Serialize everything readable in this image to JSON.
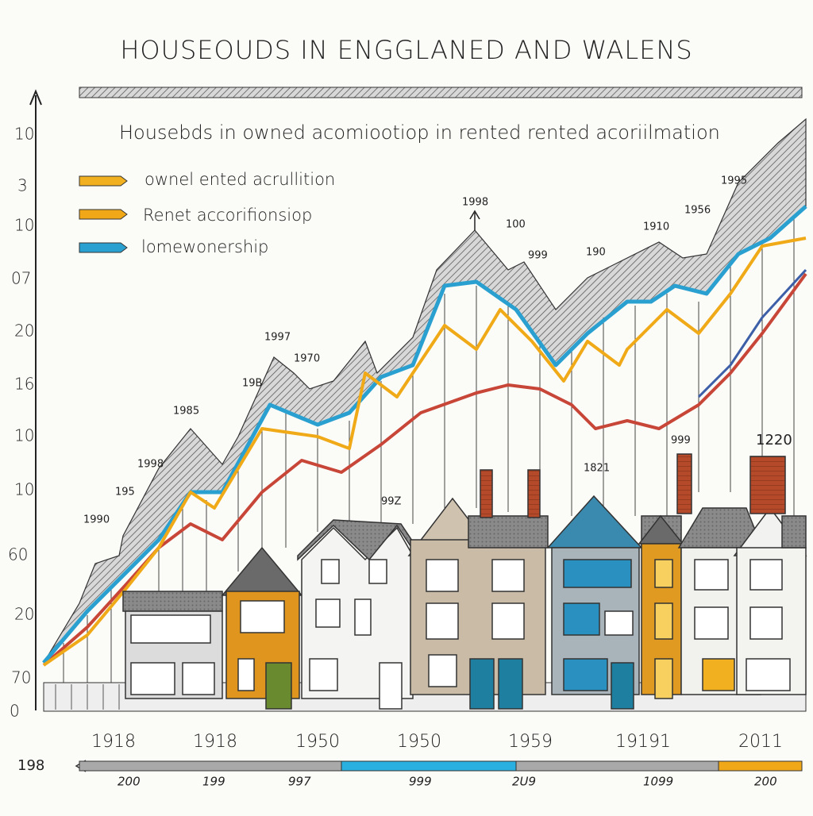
{
  "header": {
    "title": "HOUSEOUDS IN   ENGGLANED AND WALENS"
  },
  "subtitle": "Housebds in owned acomiootiop in rented   rented acoriilmation",
  "legend": [
    {
      "label": "ownel ented acrullition"
    },
    {
      "label": "Renet accorifionsiop"
    },
    {
      "label": "lomewonership"
    }
  ],
  "y_axis_labels": [
    "10",
    "3",
    "10",
    "07",
    "20",
    "16",
    "10",
    "10",
    "60",
    "20",
    "70",
    "0"
  ],
  "annotations": [
    "1990",
    "195",
    "1998",
    "1985",
    "19B",
    "1997",
    "1970",
    "1998",
    "100",
    "999",
    "190",
    "1910",
    "1956",
    "1995",
    "999",
    "1220",
    "1821",
    "99Z"
  ],
  "x_axis_labels": [
    "1918",
    "1918",
    "1950",
    "1950",
    "1959",
    "19191",
    "2011"
  ],
  "bottom_axis": {
    "start_label": "198",
    "labels": [
      "200",
      "199",
      "997",
      "999",
      "2U9",
      "1099",
      "200"
    ]
  }
}
